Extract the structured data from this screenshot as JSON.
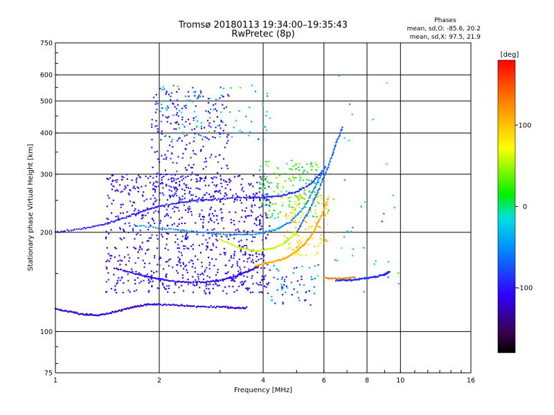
{
  "chart_data": {
    "type": "scatter",
    "title": "Tromsø 20180113 19:34:00–19:35:43",
    "subtitle": "RwPretec (8p)",
    "xlabel": "Frequency [MHz]",
    "ylabel": "Stationary phase Virtual Height [km]",
    "x_scale": "log",
    "y_scale": "log",
    "xlim": [
      1,
      16
    ],
    "ylim": [
      75,
      750
    ],
    "x_ticks": [
      "1",
      "2",
      "4",
      "6",
      "8",
      "10",
      "16"
    ],
    "y_ticks": [
      "75",
      "100",
      "200",
      "300",
      "400",
      "500",
      "600",
      "750"
    ],
    "grid": true,
    "phase_stats": {
      "header": "Phases",
      "o_line": "mean, sd,O: -85.6, 20.2",
      "x_line": "mean, sd,X:  97.5, 21.9"
    },
    "colorbar": {
      "label": "[deg]",
      "ticks": [
        "100",
        "0",
        "-100"
      ],
      "range": [
        -180,
        180
      ]
    },
    "traces": [
      {
        "points": [
          [
            1.0,
            117
          ],
          [
            1.1,
            115
          ],
          [
            1.2,
            113
          ],
          [
            1.3,
            112
          ],
          [
            1.4,
            113
          ],
          [
            1.55,
            116
          ],
          [
            1.7,
            119
          ],
          [
            1.85,
            121
          ],
          [
            2.0,
            121
          ],
          [
            2.3,
            120
          ],
          [
            2.6,
            119
          ],
          [
            3.0,
            119
          ],
          [
            3.3,
            118
          ],
          [
            3.6,
            118
          ]
        ],
        "phase": -120
      },
      {
        "points": [
          [
            1.5,
            155
          ],
          [
            1.7,
            150
          ],
          [
            1.9,
            146
          ],
          [
            2.1,
            143
          ],
          [
            2.4,
            141
          ],
          [
            2.7,
            141
          ],
          [
            3.0,
            143
          ],
          [
            3.3,
            147
          ],
          [
            3.6,
            152
          ],
          [
            3.9,
            158
          ]
        ],
        "phase": -110
      },
      {
        "points": [
          [
            3.8,
            158
          ],
          [
            4.1,
            161
          ],
          [
            4.4,
            164
          ],
          [
            4.7,
            168
          ],
          [
            5.0,
            175
          ],
          [
            5.3,
            185
          ],
          [
            5.6,
            200
          ],
          [
            5.9,
            225
          ],
          [
            6.2,
            255
          ]
        ],
        "phase": 110
      },
      {
        "points": [
          [
            1.0,
            200
          ],
          [
            1.2,
            205
          ],
          [
            1.4,
            212
          ],
          [
            1.6,
            222
          ],
          [
            1.8,
            232
          ],
          [
            2.0,
            240
          ],
          [
            2.3,
            246
          ],
          [
            2.6,
            250
          ],
          [
            3.0,
            252
          ],
          [
            3.5,
            255
          ],
          [
            4.0,
            255
          ],
          [
            4.5,
            258
          ],
          [
            5.0,
            265
          ],
          [
            5.5,
            280
          ],
          [
            6.0,
            310
          ]
        ],
        "phase": -95
      },
      {
        "points": [
          [
            1.7,
            210
          ],
          [
            2.1,
            205
          ],
          [
            2.6,
            200
          ],
          [
            3.2,
            197
          ],
          [
            3.8,
            197
          ],
          [
            4.3,
            203
          ],
          [
            4.8,
            215
          ],
          [
            5.3,
            240
          ],
          [
            5.7,
            280
          ],
          [
            6.1,
            320
          ]
        ],
        "phase": -55
      },
      {
        "points": [
          [
            6.5,
            143
          ],
          [
            7.0,
            143
          ],
          [
            7.5,
            144
          ],
          [
            8.0,
            145
          ],
          [
            8.5,
            147
          ],
          [
            9.0,
            149
          ],
          [
            9.3,
            152
          ]
        ],
        "phase": -90
      },
      {
        "points": [
          [
            6.0,
            145
          ],
          [
            6.8,
            145
          ],
          [
            7.4,
            146
          ]
        ],
        "phase": 130
      },
      {
        "points": [
          [
            5.0,
            200
          ],
          [
            5.4,
            230
          ],
          [
            5.8,
            270
          ],
          [
            6.2,
            320
          ],
          [
            6.5,
            370
          ],
          [
            6.8,
            420
          ]
        ],
        "phase": -70
      },
      {
        "points": [
          [
            3.0,
            190
          ],
          [
            3.4,
            180
          ],
          [
            3.8,
            175
          ],
          [
            4.2,
            178
          ],
          [
            4.6,
            185
          ],
          [
            5.0,
            200
          ]
        ],
        "phase": 60
      }
    ],
    "scatter_regions": [
      {
        "x": [
          1.4,
          4.2
        ],
        "y": [
          130,
          300
        ],
        "n": 900,
        "phase": -105,
        "spread": 30
      },
      {
        "x": [
          1.9,
          3.2
        ],
        "y": [
          250,
          550
        ],
        "n": 260,
        "phase": -100,
        "spread": 30
      },
      {
        "x": [
          3.9,
          5.8
        ],
        "y": [
          220,
          330
        ],
        "n": 170,
        "phase": 25,
        "spread": 90
      },
      {
        "x": [
          4.6,
          6.2
        ],
        "y": [
          170,
          260
        ],
        "n": 130,
        "phase": 90,
        "spread": 40
      },
      {
        "x": [
          2.0,
          4.2
        ],
        "y": [
          380,
          560
        ],
        "n": 90,
        "phase": -30,
        "spread": 80
      },
      {
        "x": [
          4.2,
          5.8
        ],
        "y": [
          120,
          160
        ],
        "n": 60,
        "phase": -60,
        "spread": 90
      },
      {
        "x": [
          6.0,
          10.0
        ],
        "y": [
          130,
          600
        ],
        "n": 35,
        "phase": 0,
        "spread": 120
      }
    ]
  }
}
